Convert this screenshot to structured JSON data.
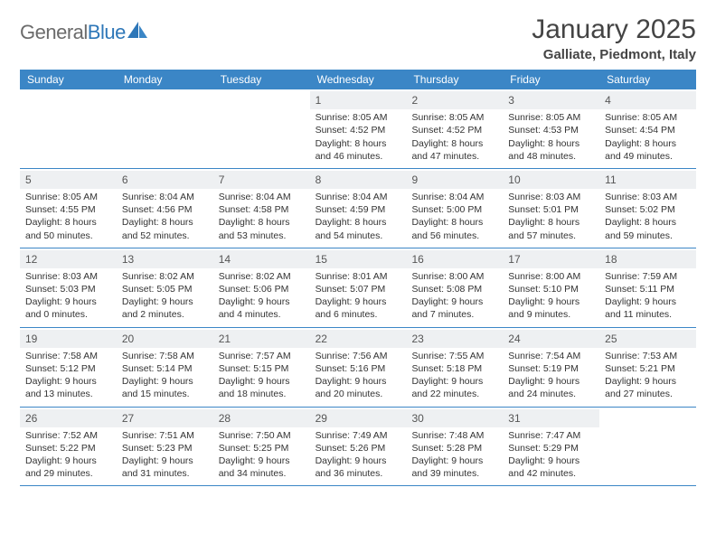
{
  "brand": {
    "name_gray": "General",
    "name_blue": "Blue"
  },
  "title": "January 2025",
  "location": "Galliate, Piedmont, Italy",
  "colors": {
    "header_bg": "#3b86c6",
    "header_text": "#ffffff",
    "daynum_bg": "#eef0f2",
    "week_border": "#3b86c6",
    "body_text": "#333333",
    "logo_gray": "#6b6b6b",
    "logo_blue": "#2e77b8"
  },
  "fonts": {
    "title_pt": 30,
    "location_pt": 15,
    "dayheader_pt": 12,
    "cell_pt": 10.5
  },
  "day_names": [
    "Sunday",
    "Monday",
    "Tuesday",
    "Wednesday",
    "Thursday",
    "Friday",
    "Saturday"
  ],
  "weeks": [
    [
      {
        "n": "",
        "sunrise": "",
        "sunset": "",
        "daylight1": "",
        "daylight2": ""
      },
      {
        "n": "",
        "sunrise": "",
        "sunset": "",
        "daylight1": "",
        "daylight2": ""
      },
      {
        "n": "",
        "sunrise": "",
        "sunset": "",
        "daylight1": "",
        "daylight2": ""
      },
      {
        "n": "1",
        "sunrise": "Sunrise: 8:05 AM",
        "sunset": "Sunset: 4:52 PM",
        "daylight1": "Daylight: 8 hours",
        "daylight2": "and 46 minutes."
      },
      {
        "n": "2",
        "sunrise": "Sunrise: 8:05 AM",
        "sunset": "Sunset: 4:52 PM",
        "daylight1": "Daylight: 8 hours",
        "daylight2": "and 47 minutes."
      },
      {
        "n": "3",
        "sunrise": "Sunrise: 8:05 AM",
        "sunset": "Sunset: 4:53 PM",
        "daylight1": "Daylight: 8 hours",
        "daylight2": "and 48 minutes."
      },
      {
        "n": "4",
        "sunrise": "Sunrise: 8:05 AM",
        "sunset": "Sunset: 4:54 PM",
        "daylight1": "Daylight: 8 hours",
        "daylight2": "and 49 minutes."
      }
    ],
    [
      {
        "n": "5",
        "sunrise": "Sunrise: 8:05 AM",
        "sunset": "Sunset: 4:55 PM",
        "daylight1": "Daylight: 8 hours",
        "daylight2": "and 50 minutes."
      },
      {
        "n": "6",
        "sunrise": "Sunrise: 8:04 AM",
        "sunset": "Sunset: 4:56 PM",
        "daylight1": "Daylight: 8 hours",
        "daylight2": "and 52 minutes."
      },
      {
        "n": "7",
        "sunrise": "Sunrise: 8:04 AM",
        "sunset": "Sunset: 4:58 PM",
        "daylight1": "Daylight: 8 hours",
        "daylight2": "and 53 minutes."
      },
      {
        "n": "8",
        "sunrise": "Sunrise: 8:04 AM",
        "sunset": "Sunset: 4:59 PM",
        "daylight1": "Daylight: 8 hours",
        "daylight2": "and 54 minutes."
      },
      {
        "n": "9",
        "sunrise": "Sunrise: 8:04 AM",
        "sunset": "Sunset: 5:00 PM",
        "daylight1": "Daylight: 8 hours",
        "daylight2": "and 56 minutes."
      },
      {
        "n": "10",
        "sunrise": "Sunrise: 8:03 AM",
        "sunset": "Sunset: 5:01 PM",
        "daylight1": "Daylight: 8 hours",
        "daylight2": "and 57 minutes."
      },
      {
        "n": "11",
        "sunrise": "Sunrise: 8:03 AM",
        "sunset": "Sunset: 5:02 PM",
        "daylight1": "Daylight: 8 hours",
        "daylight2": "and 59 minutes."
      }
    ],
    [
      {
        "n": "12",
        "sunrise": "Sunrise: 8:03 AM",
        "sunset": "Sunset: 5:03 PM",
        "daylight1": "Daylight: 9 hours",
        "daylight2": "and 0 minutes."
      },
      {
        "n": "13",
        "sunrise": "Sunrise: 8:02 AM",
        "sunset": "Sunset: 5:05 PM",
        "daylight1": "Daylight: 9 hours",
        "daylight2": "and 2 minutes."
      },
      {
        "n": "14",
        "sunrise": "Sunrise: 8:02 AM",
        "sunset": "Sunset: 5:06 PM",
        "daylight1": "Daylight: 9 hours",
        "daylight2": "and 4 minutes."
      },
      {
        "n": "15",
        "sunrise": "Sunrise: 8:01 AM",
        "sunset": "Sunset: 5:07 PM",
        "daylight1": "Daylight: 9 hours",
        "daylight2": "and 6 minutes."
      },
      {
        "n": "16",
        "sunrise": "Sunrise: 8:00 AM",
        "sunset": "Sunset: 5:08 PM",
        "daylight1": "Daylight: 9 hours",
        "daylight2": "and 7 minutes."
      },
      {
        "n": "17",
        "sunrise": "Sunrise: 8:00 AM",
        "sunset": "Sunset: 5:10 PM",
        "daylight1": "Daylight: 9 hours",
        "daylight2": "and 9 minutes."
      },
      {
        "n": "18",
        "sunrise": "Sunrise: 7:59 AM",
        "sunset": "Sunset: 5:11 PM",
        "daylight1": "Daylight: 9 hours",
        "daylight2": "and 11 minutes."
      }
    ],
    [
      {
        "n": "19",
        "sunrise": "Sunrise: 7:58 AM",
        "sunset": "Sunset: 5:12 PM",
        "daylight1": "Daylight: 9 hours",
        "daylight2": "and 13 minutes."
      },
      {
        "n": "20",
        "sunrise": "Sunrise: 7:58 AM",
        "sunset": "Sunset: 5:14 PM",
        "daylight1": "Daylight: 9 hours",
        "daylight2": "and 15 minutes."
      },
      {
        "n": "21",
        "sunrise": "Sunrise: 7:57 AM",
        "sunset": "Sunset: 5:15 PM",
        "daylight1": "Daylight: 9 hours",
        "daylight2": "and 18 minutes."
      },
      {
        "n": "22",
        "sunrise": "Sunrise: 7:56 AM",
        "sunset": "Sunset: 5:16 PM",
        "daylight1": "Daylight: 9 hours",
        "daylight2": "and 20 minutes."
      },
      {
        "n": "23",
        "sunrise": "Sunrise: 7:55 AM",
        "sunset": "Sunset: 5:18 PM",
        "daylight1": "Daylight: 9 hours",
        "daylight2": "and 22 minutes."
      },
      {
        "n": "24",
        "sunrise": "Sunrise: 7:54 AM",
        "sunset": "Sunset: 5:19 PM",
        "daylight1": "Daylight: 9 hours",
        "daylight2": "and 24 minutes."
      },
      {
        "n": "25",
        "sunrise": "Sunrise: 7:53 AM",
        "sunset": "Sunset: 5:21 PM",
        "daylight1": "Daylight: 9 hours",
        "daylight2": "and 27 minutes."
      }
    ],
    [
      {
        "n": "26",
        "sunrise": "Sunrise: 7:52 AM",
        "sunset": "Sunset: 5:22 PM",
        "daylight1": "Daylight: 9 hours",
        "daylight2": "and 29 minutes."
      },
      {
        "n": "27",
        "sunrise": "Sunrise: 7:51 AM",
        "sunset": "Sunset: 5:23 PM",
        "daylight1": "Daylight: 9 hours",
        "daylight2": "and 31 minutes."
      },
      {
        "n": "28",
        "sunrise": "Sunrise: 7:50 AM",
        "sunset": "Sunset: 5:25 PM",
        "daylight1": "Daylight: 9 hours",
        "daylight2": "and 34 minutes."
      },
      {
        "n": "29",
        "sunrise": "Sunrise: 7:49 AM",
        "sunset": "Sunset: 5:26 PM",
        "daylight1": "Daylight: 9 hours",
        "daylight2": "and 36 minutes."
      },
      {
        "n": "30",
        "sunrise": "Sunrise: 7:48 AM",
        "sunset": "Sunset: 5:28 PM",
        "daylight1": "Daylight: 9 hours",
        "daylight2": "and 39 minutes."
      },
      {
        "n": "31",
        "sunrise": "Sunrise: 7:47 AM",
        "sunset": "Sunset: 5:29 PM",
        "daylight1": "Daylight: 9 hours",
        "daylight2": "and 42 minutes."
      },
      {
        "n": "",
        "sunrise": "",
        "sunset": "",
        "daylight1": "",
        "daylight2": ""
      }
    ]
  ]
}
